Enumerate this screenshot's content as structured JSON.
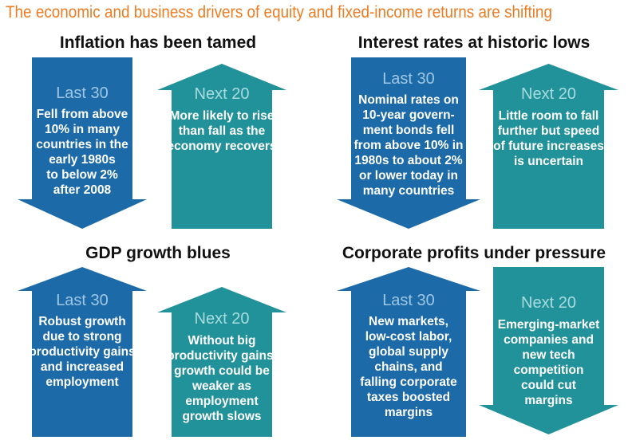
{
  "headline": "The economic and business drivers of equity and fixed-income returns are shifting",
  "colors": {
    "headline": "#ef7b21",
    "blue_arrow": "#1c6aa8",
    "teal_arrow": "#22929a",
    "period_label_blue": "#9ec7e3",
    "period_label_teal": "#a7dcdf"
  },
  "sections": [
    {
      "title": "Inflation has been tamed",
      "last": {
        "direction": "down",
        "label": "Last 30",
        "lines": [
          "Fell from above",
          "10% in many",
          "countries in the",
          "early 1980s",
          "to below 2%",
          "after 2008"
        ]
      },
      "next": {
        "direction": "up",
        "label": "Next 20",
        "lines": [
          "More likely to rise",
          "than fall as the",
          "economy recovers"
        ]
      }
    },
    {
      "title": "Interest rates at historic lows",
      "last": {
        "direction": "down",
        "label": "Last 30",
        "lines": [
          "Nominal rates on",
          "10-year govern-",
          "ment bonds fell",
          "from above 10% in",
          "1980s to about 2%",
          "or lower today in",
          "many countries"
        ]
      },
      "next": {
        "direction": "up",
        "label": "Next 20",
        "lines": [
          "Little room to fall",
          "further but speed",
          "of future increases",
          "is uncertain"
        ]
      }
    },
    {
      "title": "GDP growth blues",
      "last": {
        "direction": "up",
        "label": "Last 30",
        "lines": [
          "Robust growth",
          "due to strong",
          "productivity gains",
          "and increased",
          "employment"
        ]
      },
      "next": {
        "direction": "up",
        "label": "Next 20",
        "lines": [
          "Without big",
          "productivity gains,",
          "growth could be",
          "weaker as",
          "employment",
          "growth slows"
        ]
      }
    },
    {
      "title": "Corporate profits under pressure",
      "last": {
        "direction": "up",
        "label": "Last 30",
        "lines": [
          "New markets,",
          "low-cost labor,",
          "global supply",
          "chains, and",
          "falling corporate",
          "taxes boosted",
          "margins"
        ]
      },
      "next": {
        "direction": "down",
        "label": "Next 20",
        "lines": [
          "Emerging-market",
          "companies and",
          "new tech",
          "competition",
          "could cut",
          "margins"
        ]
      }
    }
  ]
}
